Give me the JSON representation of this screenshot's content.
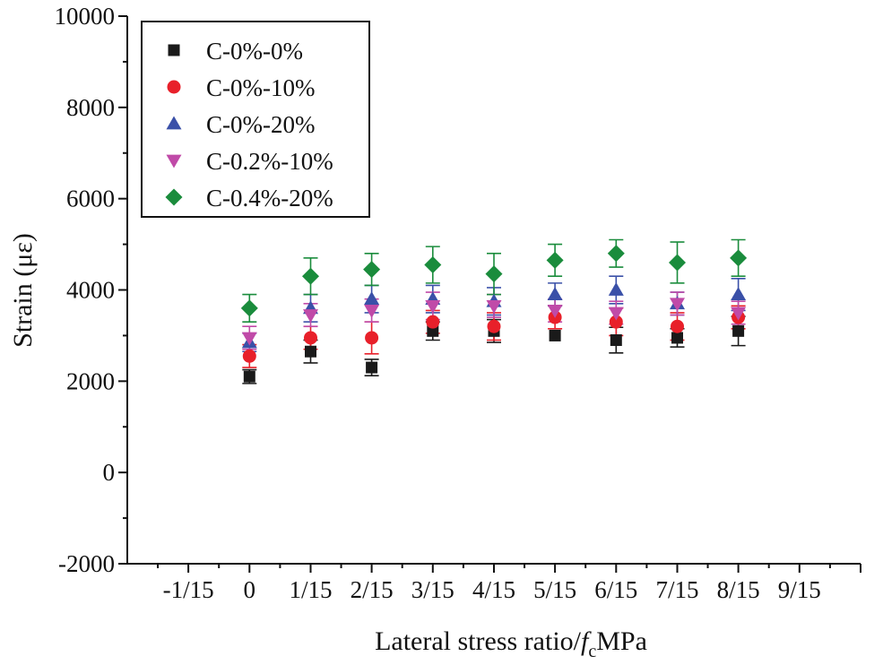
{
  "chart_data": {
    "type": "scatter",
    "title": "",
    "xlabel": "Lateral stress ratio/",
    "xlabel_italic": "f",
    "xlabel_sub": "c",
    "xlabel_unit": "MPa",
    "ylabel": "Strain (με)",
    "xlim": [
      -0.1333,
      0.6667
    ],
    "ylim": [
      -2000,
      10000
    ],
    "x_ticks": [
      -0.0667,
      0,
      0.0667,
      0.1333,
      0.2,
      0.2667,
      0.3333,
      0.4,
      0.4667,
      0.5333,
      0.6
    ],
    "x_tick_labels": [
      "-1/15",
      "0",
      "1/15",
      "2/15",
      "3/15",
      "4/15",
      "5/15",
      "6/15",
      "7/15",
      "8/15",
      "9/15"
    ],
    "y_ticks": [
      -2000,
      0,
      2000,
      4000,
      6000,
      8000,
      10000
    ],
    "y_tick_labels": [
      "-2000",
      "0",
      "2000",
      "4000",
      "6000",
      "8000",
      "10000"
    ],
    "legend_position": "top-left",
    "x": [
      0,
      0.0667,
      0.1333,
      0.2,
      0.2667,
      0.3333,
      0.4,
      0.4667,
      0.5333
    ],
    "series": [
      {
        "name": "C-0%-0%",
        "marker": "square",
        "color": "#1a1a1a",
        "values": [
          2100,
          2650,
          2300,
          3100,
          3100,
          3000,
          2900,
          2950,
          3100
        ],
        "errors": [
          150,
          250,
          180,
          200,
          250,
          0,
          280,
          200,
          320
        ]
      },
      {
        "name": "C-0%-10%",
        "marker": "circle",
        "color": "#e8202a",
        "values": [
          2550,
          2950,
          2950,
          3300,
          3200,
          3400,
          3300,
          3200,
          3400
        ],
        "errors": [
          250,
          250,
          350,
          250,
          300,
          250,
          300,
          300,
          250
        ]
      },
      {
        "name": "C-0%-20%",
        "marker": "triangle-up",
        "color": "#3a50a8",
        "values": [
          2850,
          3600,
          3800,
          3800,
          3750,
          3900,
          4000,
          3700,
          3900
        ],
        "errors": [
          200,
          300,
          300,
          300,
          300,
          250,
          300,
          250,
          350
        ]
      },
      {
        "name": "C-0.2%-10%",
        "marker": "triangle-down",
        "color": "#c04aa8",
        "values": [
          2950,
          3450,
          3550,
          3650,
          3650,
          3550,
          3500,
          3700,
          3500
        ],
        "errors": [
          250,
          250,
          250,
          300,
          250,
          250,
          250,
          250,
          250
        ]
      },
      {
        "name": "C-0.4%-20%",
        "marker": "diamond",
        "color": "#1a8c3c",
        "values": [
          3600,
          4300,
          4450,
          4550,
          4350,
          4650,
          4800,
          4600,
          4700
        ],
        "errors": [
          300,
          400,
          350,
          400,
          450,
          350,
          300,
          450,
          400
        ]
      }
    ]
  }
}
